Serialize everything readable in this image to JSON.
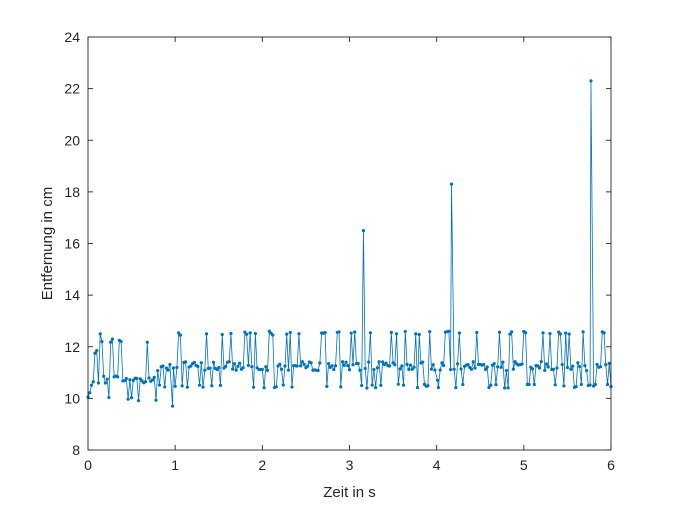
{
  "figure": {
    "xlabel": "Zeit in s",
    "ylabel": "Entfernung in cm"
  },
  "chart_data": {
    "type": "line",
    "marker": "dot",
    "title": "",
    "xlabel": "Zeit in s",
    "ylabel": "Entfernung in cm",
    "xlim": [
      0,
      6
    ],
    "ylim": [
      8,
      24
    ],
    "xticks": [
      0,
      1,
      2,
      3,
      4,
      5,
      6
    ],
    "yticks": [
      8,
      10,
      12,
      14,
      16,
      18,
      20,
      22,
      24
    ],
    "grid": false,
    "legend": "none",
    "sample_interval_s": 0.02,
    "series": [
      {
        "color": "#0072BD",
        "phases": [
          {
            "x_range": [
              0.0,
              0.04
            ],
            "typical": 10.05,
            "low": 10.0,
            "high": 11.2
          },
          {
            "x_range": [
              0.04,
              0.12
            ],
            "typical": 10.5,
            "low": 9.7,
            "high": 11.9
          },
          {
            "x_range": [
              0.12,
              0.8
            ],
            "typical": 10.75,
            "low": 9.9,
            "high": 12.3
          },
          {
            "x_range": [
              0.8,
              6.0
            ],
            "typical": 11.25,
            "low": 10.4,
            "high": 12.6
          }
        ],
        "notable_points": [
          {
            "x": 0.0,
            "y": 10.05
          },
          {
            "x": 0.1,
            "y": 11.85
          },
          {
            "x": 0.14,
            "y": 12.5
          },
          {
            "x": 0.97,
            "y": 9.7
          },
          {
            "x": 3.16,
            "y": 16.5
          },
          {
            "x": 4.17,
            "y": 18.3
          },
          {
            "x": 4.01,
            "y": 10.7
          },
          {
            "x": 5.77,
            "y": 22.3
          }
        ]
      }
    ]
  }
}
